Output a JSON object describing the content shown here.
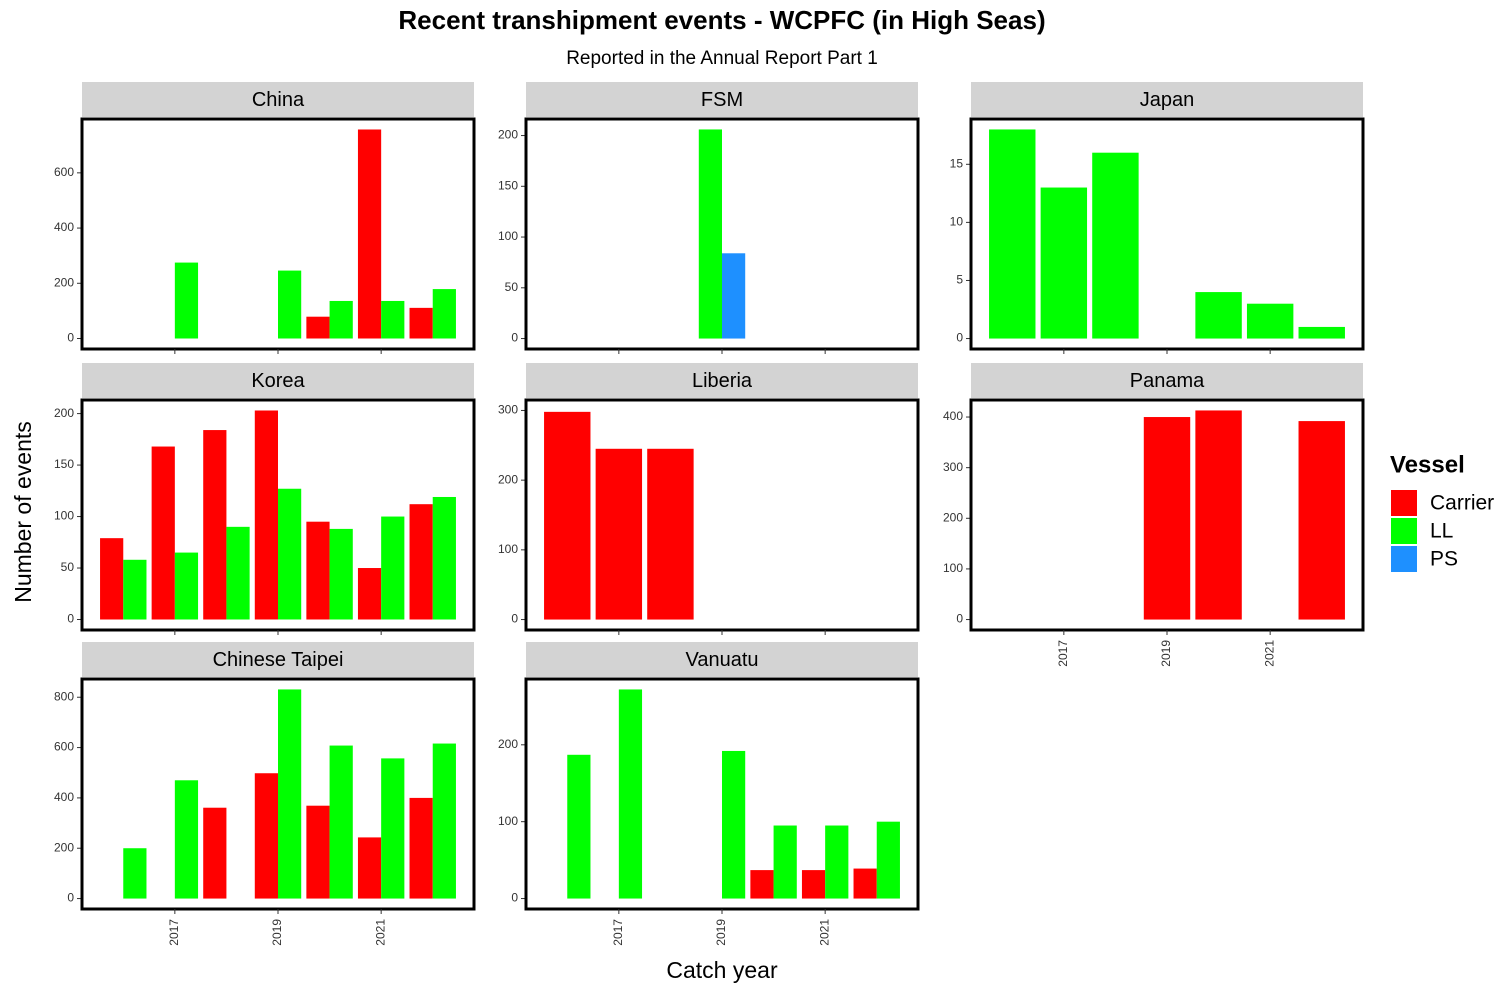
{
  "title": "Recent transhipment events - WCPFC (in High Seas)",
  "subtitle": "Reported in the Annual Report Part 1",
  "x_label": "Catch year",
  "y_label": "Number of events",
  "legend": {
    "title": "Vessel",
    "position": "right",
    "entries": [
      {
        "name": "Carrier",
        "color": "#ff0000"
      },
      {
        "name": "LL",
        "color": "#00ff00"
      },
      {
        "name": "PS",
        "color": "#1e90ff"
      }
    ]
  },
  "chart_data": [
    {
      "type": "bar",
      "title": "China",
      "x": [
        2016,
        2017,
        2018,
        2019,
        2020,
        2021,
        2022
      ],
      "xlim": [
        2015.2,
        2022.8
      ],
      "xticks": [
        2017,
        2019,
        2021
      ],
      "ylim": [
        -38,
        795
      ],
      "yticks": [
        0,
        200,
        400,
        600
      ],
      "series": [
        {
          "name": "Carrier",
          "color": "#ff0000",
          "values": [
            null,
            null,
            null,
            null,
            79,
            757,
            111
          ]
        },
        {
          "name": "LL",
          "color": "#00ff00",
          "values": [
            null,
            275,
            null,
            246,
            136,
            136,
            179
          ]
        }
      ]
    },
    {
      "type": "bar",
      "title": "FSM",
      "x": [
        2016,
        2017,
        2018,
        2019,
        2020,
        2021,
        2022
      ],
      "xlim": [
        2015.2,
        2022.8
      ],
      "xticks": [
        2017,
        2019,
        2021
      ],
      "ylim": [
        -10.3,
        216.3
      ],
      "yticks": [
        0,
        50,
        100,
        150,
        200
      ],
      "series": [
        {
          "name": "LL",
          "color": "#00ff00",
          "values": [
            null,
            null,
            null,
            206,
            null,
            null,
            null
          ]
        },
        {
          "name": "PS",
          "color": "#1e90ff",
          "values": [
            null,
            null,
            null,
            84,
            null,
            null,
            null
          ]
        }
      ]
    },
    {
      "type": "bar",
      "title": "Japan",
      "x": [
        2016,
        2017,
        2018,
        2019,
        2020,
        2021,
        2022
      ],
      "xlim": [
        2015.2,
        2022.8
      ],
      "xticks": [
        2017,
        2019,
        2021
      ],
      "ylim": [
        -0.9,
        18.9
      ],
      "yticks": [
        0,
        5,
        10,
        15
      ],
      "series": [
        {
          "name": "LL",
          "color": "#00ff00",
          "values": [
            18,
            13,
            16,
            null,
            4,
            3,
            1
          ]
        }
      ]
    },
    {
      "type": "bar",
      "title": "Korea",
      "x": [
        2016,
        2017,
        2018,
        2019,
        2020,
        2021,
        2022
      ],
      "xlim": [
        2015.2,
        2022.8
      ],
      "xticks": [
        2017,
        2019,
        2021
      ],
      "ylim": [
        -10.2,
        213.2
      ],
      "yticks": [
        0,
        50,
        100,
        150,
        200
      ],
      "series": [
        {
          "name": "Carrier",
          "color": "#ff0000",
          "values": [
            79,
            168,
            184,
            203,
            95,
            50,
            112
          ]
        },
        {
          "name": "LL",
          "color": "#00ff00",
          "values": [
            58,
            65,
            90,
            127,
            88,
            100,
            119
          ]
        }
      ]
    },
    {
      "type": "bar",
      "title": "Liberia",
      "x": [
        2016,
        2017,
        2018,
        2019,
        2020,
        2021,
        2022
      ],
      "xlim": [
        2015.2,
        2022.8
      ],
      "xticks": [
        2017,
        2019,
        2021
      ],
      "ylim": [
        -15,
        315
      ],
      "yticks": [
        0,
        100,
        200,
        300
      ],
      "series": [
        {
          "name": "Carrier",
          "color": "#ff0000",
          "values": [
            298,
            245,
            245,
            null,
            null,
            null,
            null
          ]
        }
      ]
    },
    {
      "type": "bar",
      "title": "Panama",
      "x": [
        2016,
        2017,
        2018,
        2019,
        2020,
        2021,
        2022
      ],
      "xlim": [
        2015.2,
        2022.8
      ],
      "xticks": [
        2017,
        2019,
        2021
      ],
      "ylim": [
        -20.65,
        433.65
      ],
      "yticks": [
        0,
        100,
        200,
        300,
        400
      ],
      "series": [
        {
          "name": "Carrier",
          "color": "#ff0000",
          "values": [
            null,
            null,
            null,
            400,
            413,
            null,
            392
          ]
        }
      ]
    },
    {
      "type": "bar",
      "title": "Chinese Taipei",
      "x": [
        2016,
        2017,
        2018,
        2019,
        2020,
        2021,
        2022
      ],
      "xlim": [
        2015.2,
        2022.8
      ],
      "xticks": [
        2017,
        2019,
        2021
      ],
      "ylim": [
        -41.5,
        872.5
      ],
      "yticks": [
        0,
        200,
        400,
        600,
        800
      ],
      "series": [
        {
          "name": "Carrier",
          "color": "#ff0000",
          "values": [
            null,
            null,
            361,
            498,
            369,
            243,
            400
          ]
        },
        {
          "name": "LL",
          "color": "#00ff00",
          "values": [
            200,
            470,
            null,
            831,
            608,
            557,
            616
          ]
        }
      ]
    },
    {
      "type": "bar",
      "title": "Vanuatu",
      "x": [
        2016,
        2017,
        2018,
        2019,
        2020,
        2021,
        2022
      ],
      "xlim": [
        2015.2,
        2022.8
      ],
      "xticks": [
        2017,
        2019,
        2021
      ],
      "ylim": [
        -13.6,
        285.6
      ],
      "yticks": [
        0,
        100,
        200
      ],
      "series": [
        {
          "name": "Carrier",
          "color": "#ff0000",
          "values": [
            null,
            null,
            null,
            null,
            37,
            37,
            39
          ]
        },
        {
          "name": "LL",
          "color": "#00ff00",
          "values": [
            187,
            272,
            null,
            192,
            95,
            95,
            100
          ]
        }
      ]
    }
  ]
}
